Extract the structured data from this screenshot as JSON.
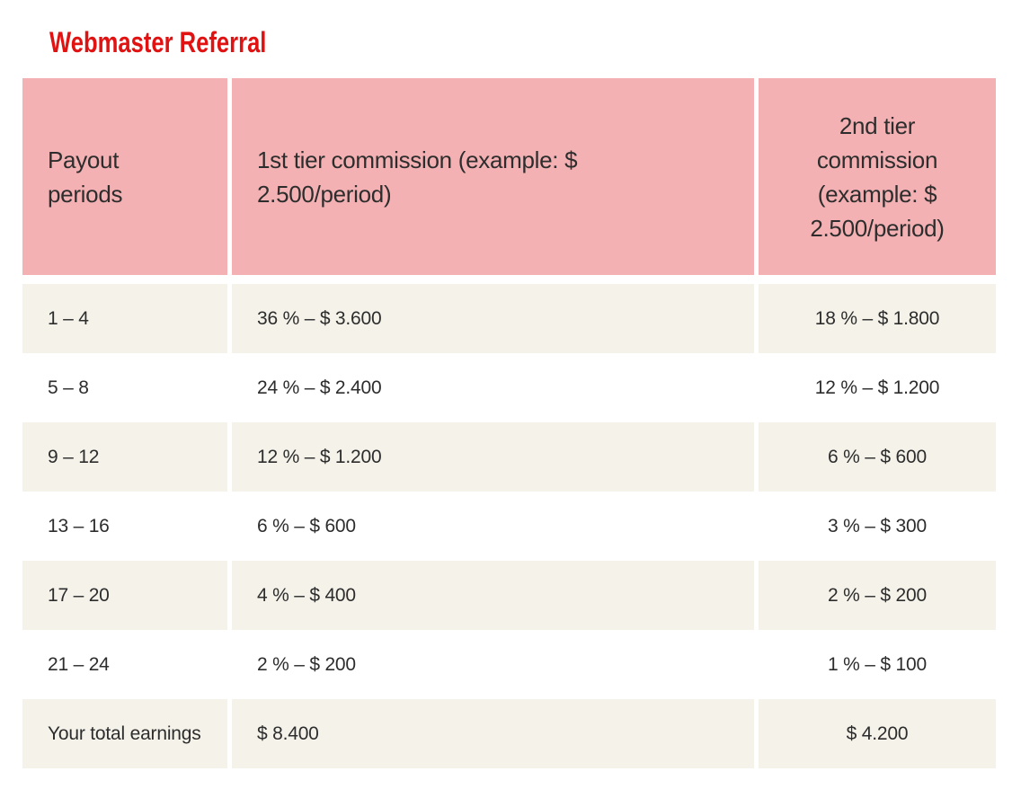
{
  "title": "Webmaster Referral",
  "colors": {
    "title_red": "#e01212",
    "header_bg": "#f4b1b3",
    "row_alt_bg": "#f5f2ea",
    "text": "#2d2d2d"
  },
  "table": {
    "columns": [
      {
        "label": "Payout\nperiods"
      },
      {
        "label": "1st tier commission (example: $\n2.500/period)"
      },
      {
        "label": "2nd tier\ncommission\n(example: $\n2.500/period)"
      }
    ],
    "rows": [
      {
        "periods": "1 – 4",
        "tier1": "36 % – $ 3.600",
        "tier2": "18 % – $ 1.800"
      },
      {
        "periods": "5 – 8",
        "tier1": "24 % – $ 2.400",
        "tier2": "12 % – $ 1.200"
      },
      {
        "periods": "9 – 12",
        "tier1": "12 % – $ 1.200",
        "tier2": "6 % – $ 600"
      },
      {
        "periods": "13 – 16",
        "tier1": "6 % – $ 600",
        "tier2": "3 % – $ 300"
      },
      {
        "periods": "17 – 20",
        "tier1": "4 % – $ 400",
        "tier2": "2 % – $ 200"
      },
      {
        "periods": "21 – 24",
        "tier1": "2 % – $ 200",
        "tier2": "1 % – $ 100"
      },
      {
        "periods": "Your total earnings",
        "tier1": "$ 8.400",
        "tier2": "$ 4.200"
      }
    ]
  }
}
